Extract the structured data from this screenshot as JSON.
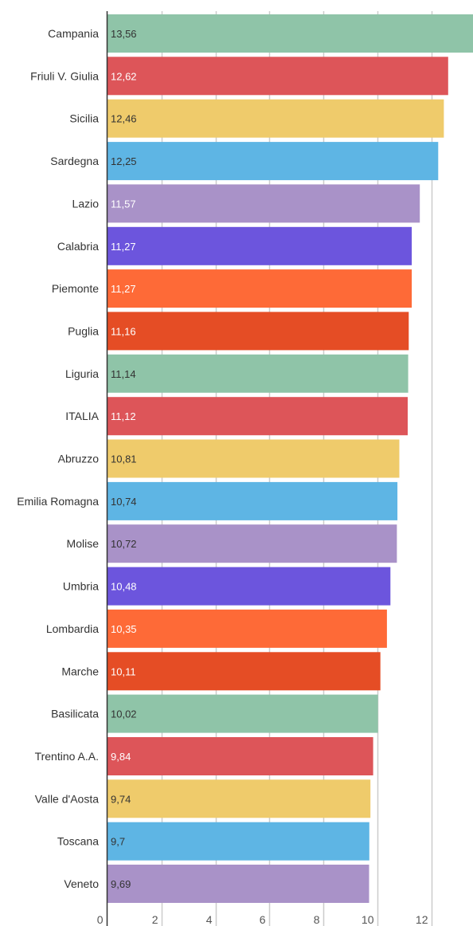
{
  "chart_data": {
    "type": "bar",
    "orientation": "horizontal",
    "categories": [
      "Campania",
      "Friuli V. Giulia",
      "Sicilia",
      "Sardegna",
      "Lazio",
      "Calabria",
      "Piemonte",
      "Puglia",
      "Liguria",
      "ITALIA",
      "Abruzzo",
      "Emilia Romagna",
      "Molise",
      "Umbria",
      "Lombardia",
      "Marche",
      "Basilicata",
      "Trentino A.A.",
      "Valle d'Aosta",
      "Toscana",
      "Veneto"
    ],
    "values": [
      13.56,
      12.62,
      12.46,
      12.25,
      11.57,
      11.27,
      11.27,
      11.16,
      11.14,
      11.12,
      10.81,
      10.74,
      10.72,
      10.48,
      10.35,
      10.11,
      10.02,
      9.84,
      9.74,
      9.7,
      9.69
    ],
    "value_labels": [
      "13,56",
      "12,62",
      "12,46",
      "12,25",
      "11,57",
      "11,27",
      "11,27",
      "11,16",
      "11,14",
      "11,12",
      "10,81",
      "10,74",
      "10,72",
      "10,48",
      "10,35",
      "10,11",
      "10,02",
      "9,84",
      "9,74",
      "9,7",
      "9,69"
    ],
    "bar_colors": [
      "#8fc4a8",
      "#dd5559",
      "#efcb6b",
      "#5eb5e4",
      "#a992c8",
      "#6c55dd",
      "#fe6a37",
      "#e54d25",
      "#8fc4a8",
      "#dd5559",
      "#efcb6b",
      "#5eb5e4",
      "#a992c8",
      "#6c55dd",
      "#fe6a37",
      "#e54d25",
      "#8fc4a8",
      "#dd5559",
      "#efcb6b",
      "#5eb5e4",
      "#a992c8"
    ],
    "label_colors": [
      "#333333",
      "#ffffff",
      "#333333",
      "#333333",
      "#ffffff",
      "#ffffff",
      "#ffffff",
      "#ffffff",
      "#333333",
      "#ffffff",
      "#333333",
      "#333333",
      "#333333",
      "#ffffff",
      "#ffffff",
      "#ffffff",
      "#333333",
      "#ffffff",
      "#333333",
      "#333333",
      "#333333"
    ],
    "x_ticks": [
      0,
      2,
      4,
      6,
      8,
      10,
      12
    ],
    "x_tick_labels": [
      "0",
      "2",
      "4",
      "6",
      "8",
      "10",
      "12"
    ],
    "xlim": [
      0,
      13.56
    ],
    "grid": true,
    "title": "",
    "xlabel": "",
    "ylabel": ""
  }
}
